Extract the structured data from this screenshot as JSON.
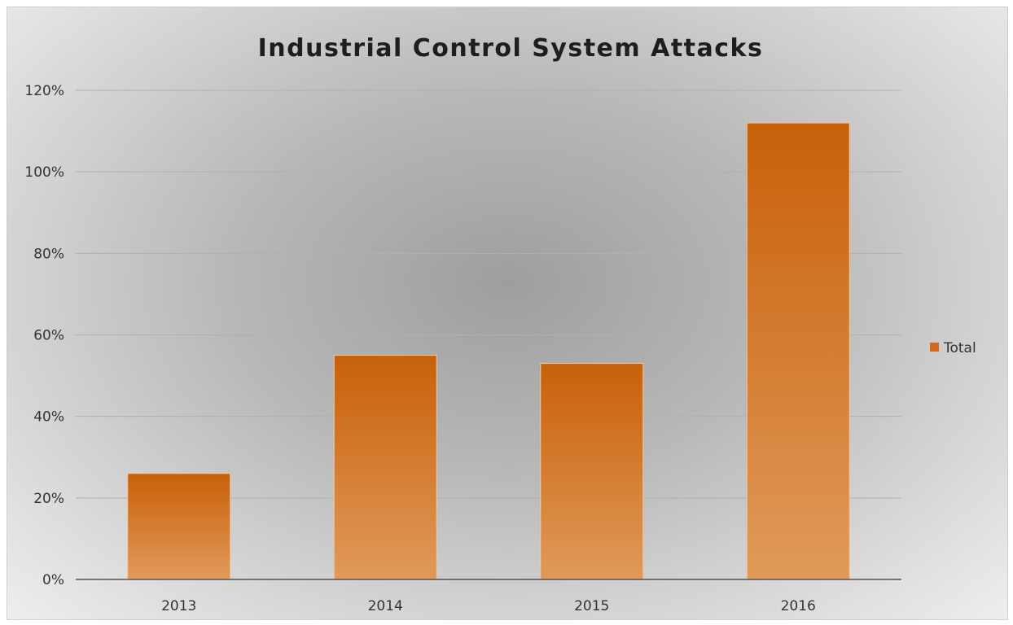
{
  "chart_data": {
    "type": "bar",
    "title": "Industrial Control System Attacks",
    "categories": [
      "2013",
      "2014",
      "2015",
      "2016"
    ],
    "series": [
      {
        "name": "Total",
        "values": [
          26,
          55,
          53,
          112
        ],
        "color": "#d2691e"
      }
    ],
    "ylim": [
      0,
      120
    ],
    "yticks": [
      0,
      20,
      40,
      60,
      80,
      100,
      120
    ],
    "ytick_labels": [
      "0%",
      "20%",
      "40%",
      "60%",
      "80%",
      "100%",
      "120%"
    ],
    "xlabel": "",
    "ylabel": "",
    "grid": true,
    "legend_position": "right"
  }
}
